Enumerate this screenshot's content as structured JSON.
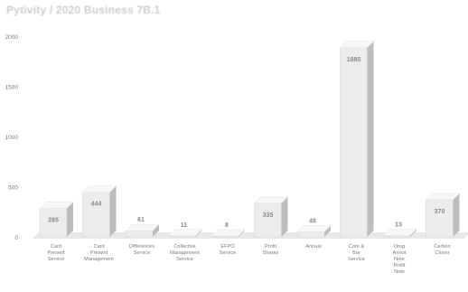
{
  "chart_data": {
    "type": "bar",
    "title": "Pytivity / 2020 Business 7B.1",
    "categories": [
      "Card Present Service",
      "Card Present Management",
      "Differences Service",
      "Collective Management Service",
      "EFPO Service",
      "Profit Shares",
      "Annual",
      "Core & Bar Service",
      "Drug Arrest Note Profit Note",
      "Carbon Closer"
    ],
    "values": [
      285,
      444,
      61,
      11,
      8,
      335,
      48,
      1885,
      13,
      370
    ],
    "value_labels": [
      "285",
      "444",
      "61",
      "11",
      "8",
      "335",
      "48",
      "1885",
      "13",
      "370"
    ],
    "y_ticks": [
      0,
      500,
      1000,
      1500,
      2000
    ],
    "y_tick_labels": [
      "0",
      "500",
      "1000",
      "1500",
      "2000"
    ],
    "ylim": [
      0,
      2000
    ],
    "xlabel": "",
    "ylabel": "",
    "grid": false,
    "legend": "none",
    "colors": {
      "bar_front": "#ececec",
      "bar_side": "#bdbdbd",
      "bar_top": "#f7f7f7",
      "floor": "#d9d9d9",
      "label_text": "#7a7a7a",
      "value_text": "#8a8a8a",
      "title_text": "#cccccc"
    }
  }
}
